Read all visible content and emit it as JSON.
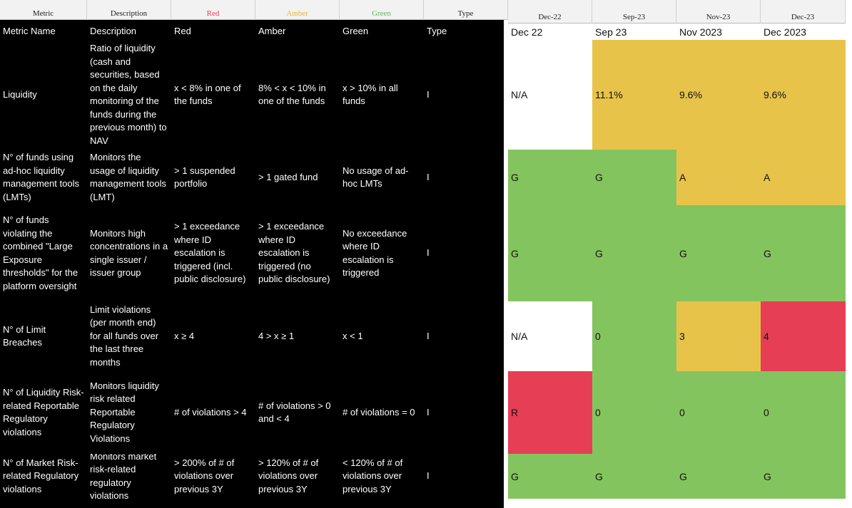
{
  "header": {
    "columns": [
      "Metric",
      "Description",
      "Red",
      "Amber",
      "Green",
      "Type",
      "Dec-22",
      "Sep-23",
      "Nov-23",
      "Dec-23"
    ]
  },
  "subheader": [
    "Metric Name",
    "Description",
    "Red",
    "Amber",
    "Green",
    "Type",
    "Dec 22",
    "Sep 23",
    "Nov 2023",
    "Dec 2023"
  ],
  "rows": [
    {
      "cells": [
        "Liquidity",
        "Ratio of liquidity (cash and securities, based on the daily monitoring of the funds during the previous month) to NAV",
        "x < 8% in one of the funds",
        "8% < x < 10% in one of the funds",
        "x > 10% in all funds",
        "I"
      ],
      "statuses": [
        "N/A",
        "11.1%",
        "9.6%",
        "9.6%"
      ],
      "colors": [
        "#ffffff",
        "#e8c34a",
        "#e8c34a",
        "#e8c34a"
      ]
    },
    {
      "cells": [
        "N° of funds using ad-hoc liquidity management tools (LMTs)",
        "Monitors the usage of liquidity management tools (LMT)",
        "> 1 suspended portfolio",
        "> 1 gated fund",
        "No usage of ad-hoc LMTs",
        "I"
      ],
      "statuses": [
        "G",
        "G",
        "A",
        "A"
      ],
      "colors": [
        "#84c45e",
        "#84c45e",
        "#e8c34a",
        "#e8c34a"
      ]
    },
    {
      "cells": [
        "N° of funds violating the combined \"Large Exposure thresholds\" for the platform oversight",
        "Monitors high concentrations in a single issuer / issuer group",
        "> 1 exceedance where ID escalation is triggered (incl. public disclosure)",
        "> 1 exceedance where ID escalation is triggered (no public disclosure)",
        "No exceedance where ID escalation is triggered",
        "I"
      ],
      "statuses": [
        "G",
        "G",
        "G",
        "G"
      ],
      "colors": [
        "#84c45e",
        "#84c45e",
        "#84c45e",
        "#84c45e"
      ]
    },
    {
      "cells": [
        "N° of Limit Breaches",
        "Limit violations (per month end) for all funds over the last three months",
        "x ≥ 4",
        "4 > x ≥ 1",
        "x < 1",
        "I"
      ],
      "statuses": [
        "N/A",
        "0",
        "3",
        "4"
      ],
      "colors": [
        "#ffffff",
        "#84c45e",
        "#e8c34a",
        "#e63e55"
      ]
    },
    {
      "cells": [
        "N° of Liquidity Risk-related Reportable Regulatory violations",
        "Monitors liquidity risk related Reportable Regulatory Violations",
        "# of violations > 4",
        "# of violations > 0 and < 4",
        "# of violations = 0",
        "I"
      ],
      "statuses": [
        "R",
        "0",
        "0",
        "0"
      ],
      "colors": [
        "#e63e55",
        "#84c45e",
        "#84c45e",
        "#84c45e"
      ]
    },
    {
      "cells": [
        "N° of Market Risk-related Regulatory violations",
        "Monitors market risk-related regulatory violations",
        "> 200% of # of violations over previous 3Y",
        "> 120% of # of violations over previous 3Y",
        "< 120% of # of violations over previous 3Y",
        "I"
      ],
      "statuses": [
        "G",
        "G",
        "G",
        "G"
      ],
      "colors": [
        "#84c45e",
        "#84c45e",
        "#84c45e",
        "#84c45e"
      ]
    }
  ]
}
